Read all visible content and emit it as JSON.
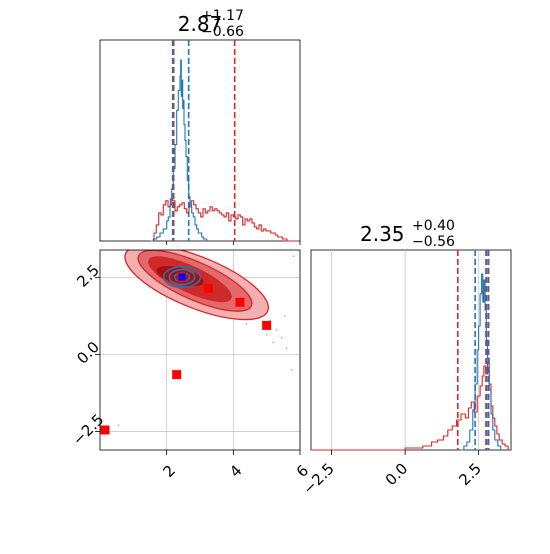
{
  "chart_data": [
    {
      "panel": "marginal-top",
      "type": "histogram",
      "title": {
        "base": "2.87",
        "sup": "+1.17",
        "sub": "−0.66"
      },
      "xlim": [
        0.0,
        6.0
      ],
      "x_ticks": [
        2,
        4,
        6
      ],
      "x_tick_labels": [
        "",
        "",
        ""
      ],
      "y_ticks": [],
      "quantile_lines": [
        {
          "color": "#d62728",
          "style": "dashed",
          "x": 2.21
        },
        {
          "color": "#d62728",
          "style": "dashed",
          "x": 4.04
        },
        {
          "color": "#1f77b4",
          "style": "dashed",
          "x": 2.18
        },
        {
          "color": "#1f77b4",
          "style": "dashed",
          "x": 2.66
        }
      ],
      "series": [
        {
          "color": "#d62728",
          "bins": [
            [
              1.55,
              0.0
            ],
            [
              1.62,
              0.04
            ],
            [
              1.69,
              0.08
            ],
            [
              1.76,
              0.14
            ],
            [
              1.83,
              0.13
            ],
            [
              1.9,
              0.18
            ],
            [
              1.97,
              0.2
            ],
            [
              2.04,
              0.17
            ],
            [
              2.11,
              0.21
            ],
            [
              2.18,
              0.2
            ],
            [
              2.25,
              0.15
            ],
            [
              2.32,
              0.17
            ],
            [
              2.39,
              0.18
            ],
            [
              2.46,
              0.19
            ],
            [
              2.53,
              0.16
            ],
            [
              2.6,
              0.14
            ],
            [
              2.67,
              0.17
            ],
            [
              2.74,
              0.2
            ],
            [
              2.81,
              0.18
            ],
            [
              2.88,
              0.16
            ],
            [
              2.95,
              0.14
            ],
            [
              3.02,
              0.12
            ],
            [
              3.09,
              0.16
            ],
            [
              3.16,
              0.14
            ],
            [
              3.23,
              0.15
            ],
            [
              3.3,
              0.17
            ],
            [
              3.37,
              0.15
            ],
            [
              3.44,
              0.16
            ],
            [
              3.51,
              0.15
            ],
            [
              3.58,
              0.14
            ],
            [
              3.65,
              0.13
            ],
            [
              3.72,
              0.12
            ],
            [
              3.79,
              0.14
            ],
            [
              3.86,
              0.1
            ],
            [
              3.93,
              0.13
            ],
            [
              4.0,
              0.12
            ],
            [
              4.07,
              0.11
            ],
            [
              4.14,
              0.13
            ],
            [
              4.21,
              0.12
            ],
            [
              4.28,
              0.08
            ],
            [
              4.35,
              0.11
            ],
            [
              4.42,
              0.1
            ],
            [
              4.49,
              0.11
            ],
            [
              4.56,
              0.09
            ],
            [
              4.63,
              0.07
            ],
            [
              4.7,
              0.06
            ],
            [
              4.77,
              0.08
            ],
            [
              4.84,
              0.05
            ],
            [
              4.91,
              0.06
            ],
            [
              4.98,
              0.05
            ],
            [
              5.05,
              0.05
            ],
            [
              5.12,
              0.04
            ],
            [
              5.19,
              0.04
            ],
            [
              5.26,
              0.03
            ],
            [
              5.33,
              0.02
            ],
            [
              5.4,
              0.02
            ],
            [
              5.47,
              0.01
            ],
            [
              5.54,
              0.01
            ],
            [
              5.61,
              0.0
            ],
            [
              5.95,
              0.0
            ]
          ]
        },
        {
          "color": "#1f77b4",
          "bins": [
            [
              1.5,
              0.0
            ],
            [
              1.6,
              0.01
            ],
            [
              1.7,
              0.02
            ],
            [
              1.8,
              0.04
            ],
            [
              1.9,
              0.06
            ],
            [
              2.0,
              0.1
            ],
            [
              2.05,
              0.12
            ],
            [
              2.1,
              0.18
            ],
            [
              2.15,
              0.26
            ],
            [
              2.2,
              0.36
            ],
            [
              2.25,
              0.48
            ],
            [
              2.3,
              0.65
            ],
            [
              2.35,
              0.75
            ],
            [
              2.4,
              0.82
            ],
            [
              2.42,
              0.9
            ],
            [
              2.44,
              0.72
            ],
            [
              2.46,
              0.8
            ],
            [
              2.48,
              0.66
            ],
            [
              2.5,
              0.7
            ],
            [
              2.52,
              0.58
            ],
            [
              2.55,
              0.5
            ],
            [
              2.58,
              0.42
            ],
            [
              2.62,
              0.3
            ],
            [
              2.66,
              0.22
            ],
            [
              2.7,
              0.17
            ],
            [
              2.75,
              0.14
            ],
            [
              2.8,
              0.12
            ],
            [
              2.85,
              0.08
            ],
            [
              2.9,
              0.06
            ],
            [
              2.95,
              0.04
            ],
            [
              3.0,
              0.04
            ],
            [
              3.05,
              0.02
            ],
            [
              3.1,
              0.01
            ],
            [
              3.2,
              0.0
            ]
          ]
        }
      ]
    },
    {
      "panel": "marginal-right",
      "type": "histogram",
      "title": {
        "base": "2.35",
        "sup": "+0.40",
        "sub": "−0.56"
      },
      "xlim": [
        -3.2,
        3.6
      ],
      "x_ticks": [
        -2.5,
        0.0,
        2.5
      ],
      "x_tick_labels": [
        "−2.5",
        "0.0",
        "2.5"
      ],
      "y_ticks": [],
      "quantile_lines": [
        {
          "color": "#d62728",
          "style": "dashed",
          "x": 1.79
        },
        {
          "color": "#d62728",
          "style": "dashed",
          "x": 2.75
        },
        {
          "color": "#1f77b4",
          "style": "dashed",
          "x": 2.38
        },
        {
          "color": "#1f77b4",
          "style": "dashed",
          "x": 2.78
        },
        {
          "color": "#7a4a8a",
          "style": "dashed",
          "x": 2.84
        }
      ],
      "series": [
        {
          "color": "#d62728",
          "bins": [
            [
              -3.2,
              0.0
            ],
            [
              0.0,
              0.01
            ],
            [
              0.3,
              0.01
            ],
            [
              0.6,
              0.02
            ],
            [
              0.9,
              0.04
            ],
            [
              1.1,
              0.05
            ],
            [
              1.3,
              0.07
            ],
            [
              1.45,
              0.1
            ],
            [
              1.6,
              0.12
            ],
            [
              1.75,
              0.15
            ],
            [
              1.9,
              0.18
            ],
            [
              2.05,
              0.16
            ],
            [
              2.15,
              0.21
            ],
            [
              2.25,
              0.24
            ],
            [
              2.35,
              0.19
            ],
            [
              2.45,
              0.27
            ],
            [
              2.55,
              0.32
            ],
            [
              2.62,
              0.37
            ],
            [
              2.68,
              0.42
            ],
            [
              2.74,
              0.38
            ],
            [
              2.8,
              0.44
            ],
            [
              2.86,
              0.33
            ],
            [
              2.92,
              0.22
            ],
            [
              2.98,
              0.16
            ],
            [
              3.05,
              0.12
            ],
            [
              3.12,
              0.08
            ],
            [
              3.2,
              0.05
            ],
            [
              3.3,
              0.03
            ],
            [
              3.4,
              0.02
            ],
            [
              3.5,
              0.0
            ]
          ]
        },
        {
          "color": "#1f77b4",
          "bins": [
            [
              1.9,
              0.0
            ],
            [
              2.0,
              0.02
            ],
            [
              2.1,
              0.04
            ],
            [
              2.2,
              0.1
            ],
            [
              2.3,
              0.2
            ],
            [
              2.38,
              0.33
            ],
            [
              2.45,
              0.5
            ],
            [
              2.5,
              0.62
            ],
            [
              2.55,
              0.78
            ],
            [
              2.6,
              0.88
            ],
            [
              2.64,
              0.74
            ],
            [
              2.68,
              0.85
            ],
            [
              2.72,
              0.7
            ],
            [
              2.76,
              0.55
            ],
            [
              2.8,
              0.46
            ],
            [
              2.86,
              0.3
            ],
            [
              2.92,
              0.18
            ],
            [
              2.98,
              0.1
            ],
            [
              3.05,
              0.05
            ],
            [
              3.15,
              0.02
            ],
            [
              3.25,
              0.0
            ]
          ]
        }
      ]
    },
    {
      "panel": "joint",
      "type": "contour",
      "xlim": [
        0.0,
        6.0
      ],
      "ylim": [
        -3.1,
        3.4
      ],
      "x_ticks": [
        2,
        4,
        6
      ],
      "x_tick_labels": [
        "2",
        "4",
        "6"
      ],
      "y_ticks": [
        -2.5,
        0.0,
        2.5
      ],
      "y_tick_labels": [
        "−2.5",
        "0.0",
        "2.5"
      ],
      "grid": true,
      "red_contour_levels": [
        {
          "color": "#f3b0b0",
          "center": [
            2.9,
            2.35
          ],
          "rx": 2.3,
          "ry": 0.52,
          "angle_deg": -22
        },
        {
          "color": "#e36a6a",
          "center": [
            2.85,
            2.4
          ],
          "rx": 1.85,
          "ry": 0.38,
          "angle_deg": -24
        },
        {
          "color": "#cf2a2a",
          "center": [
            2.7,
            2.45
          ],
          "rx": 1.35,
          "ry": 0.26,
          "angle_deg": -25
        },
        {
          "color": "#a80e0e",
          "center": [
            2.4,
            2.55
          ],
          "rx": 0.75,
          "ry": 0.18,
          "angle_deg": -15
        }
      ],
      "blue_contour_levels": [
        {
          "center": [
            2.46,
            2.52
          ],
          "rx": 0.55,
          "ry": 0.34
        },
        {
          "center": [
            2.46,
            2.52
          ],
          "rx": 0.38,
          "ry": 0.24
        },
        {
          "center": [
            2.46,
            2.52
          ],
          "rx": 0.22,
          "ry": 0.14
        }
      ],
      "red_markers": [
        {
          "x": 2.45,
          "y": 2.52
        },
        {
          "x": 3.25,
          "y": 2.15
        },
        {
          "x": 4.2,
          "y": 1.7
        },
        {
          "x": 5.0,
          "y": 0.95
        },
        {
          "x": 2.3,
          "y": -0.65
        },
        {
          "x": 0.15,
          "y": -2.45
        }
      ],
      "blue_marker": {
        "x": 2.46,
        "y": 2.52
      },
      "scatter_points": [
        {
          "x": 4.8,
          "y": 1.3
        },
        {
          "x": 5.1,
          "y": 1.1
        },
        {
          "x": 5.3,
          "y": 0.8
        },
        {
          "x": 5.45,
          "y": 0.55
        },
        {
          "x": 5.2,
          "y": 0.4
        },
        {
          "x": 5.6,
          "y": 0.2
        },
        {
          "x": 5.0,
          "y": 0.65
        },
        {
          "x": 4.9,
          "y": 1.5
        },
        {
          "x": 4.6,
          "y": 1.2
        },
        {
          "x": 5.55,
          "y": 1.25
        },
        {
          "x": 5.75,
          "y": -0.5
        },
        {
          "x": 3.9,
          "y": 1.4
        },
        {
          "x": 1.8,
          "y": 2.3
        },
        {
          "x": 1.7,
          "y": 2.85
        },
        {
          "x": 5.8,
          "y": 3.2
        },
        {
          "x": 0.55,
          "y": -2.3
        },
        {
          "x": 3.5,
          "y": 1.55
        },
        {
          "x": 4.4,
          "y": 1.0
        }
      ]
    }
  ]
}
